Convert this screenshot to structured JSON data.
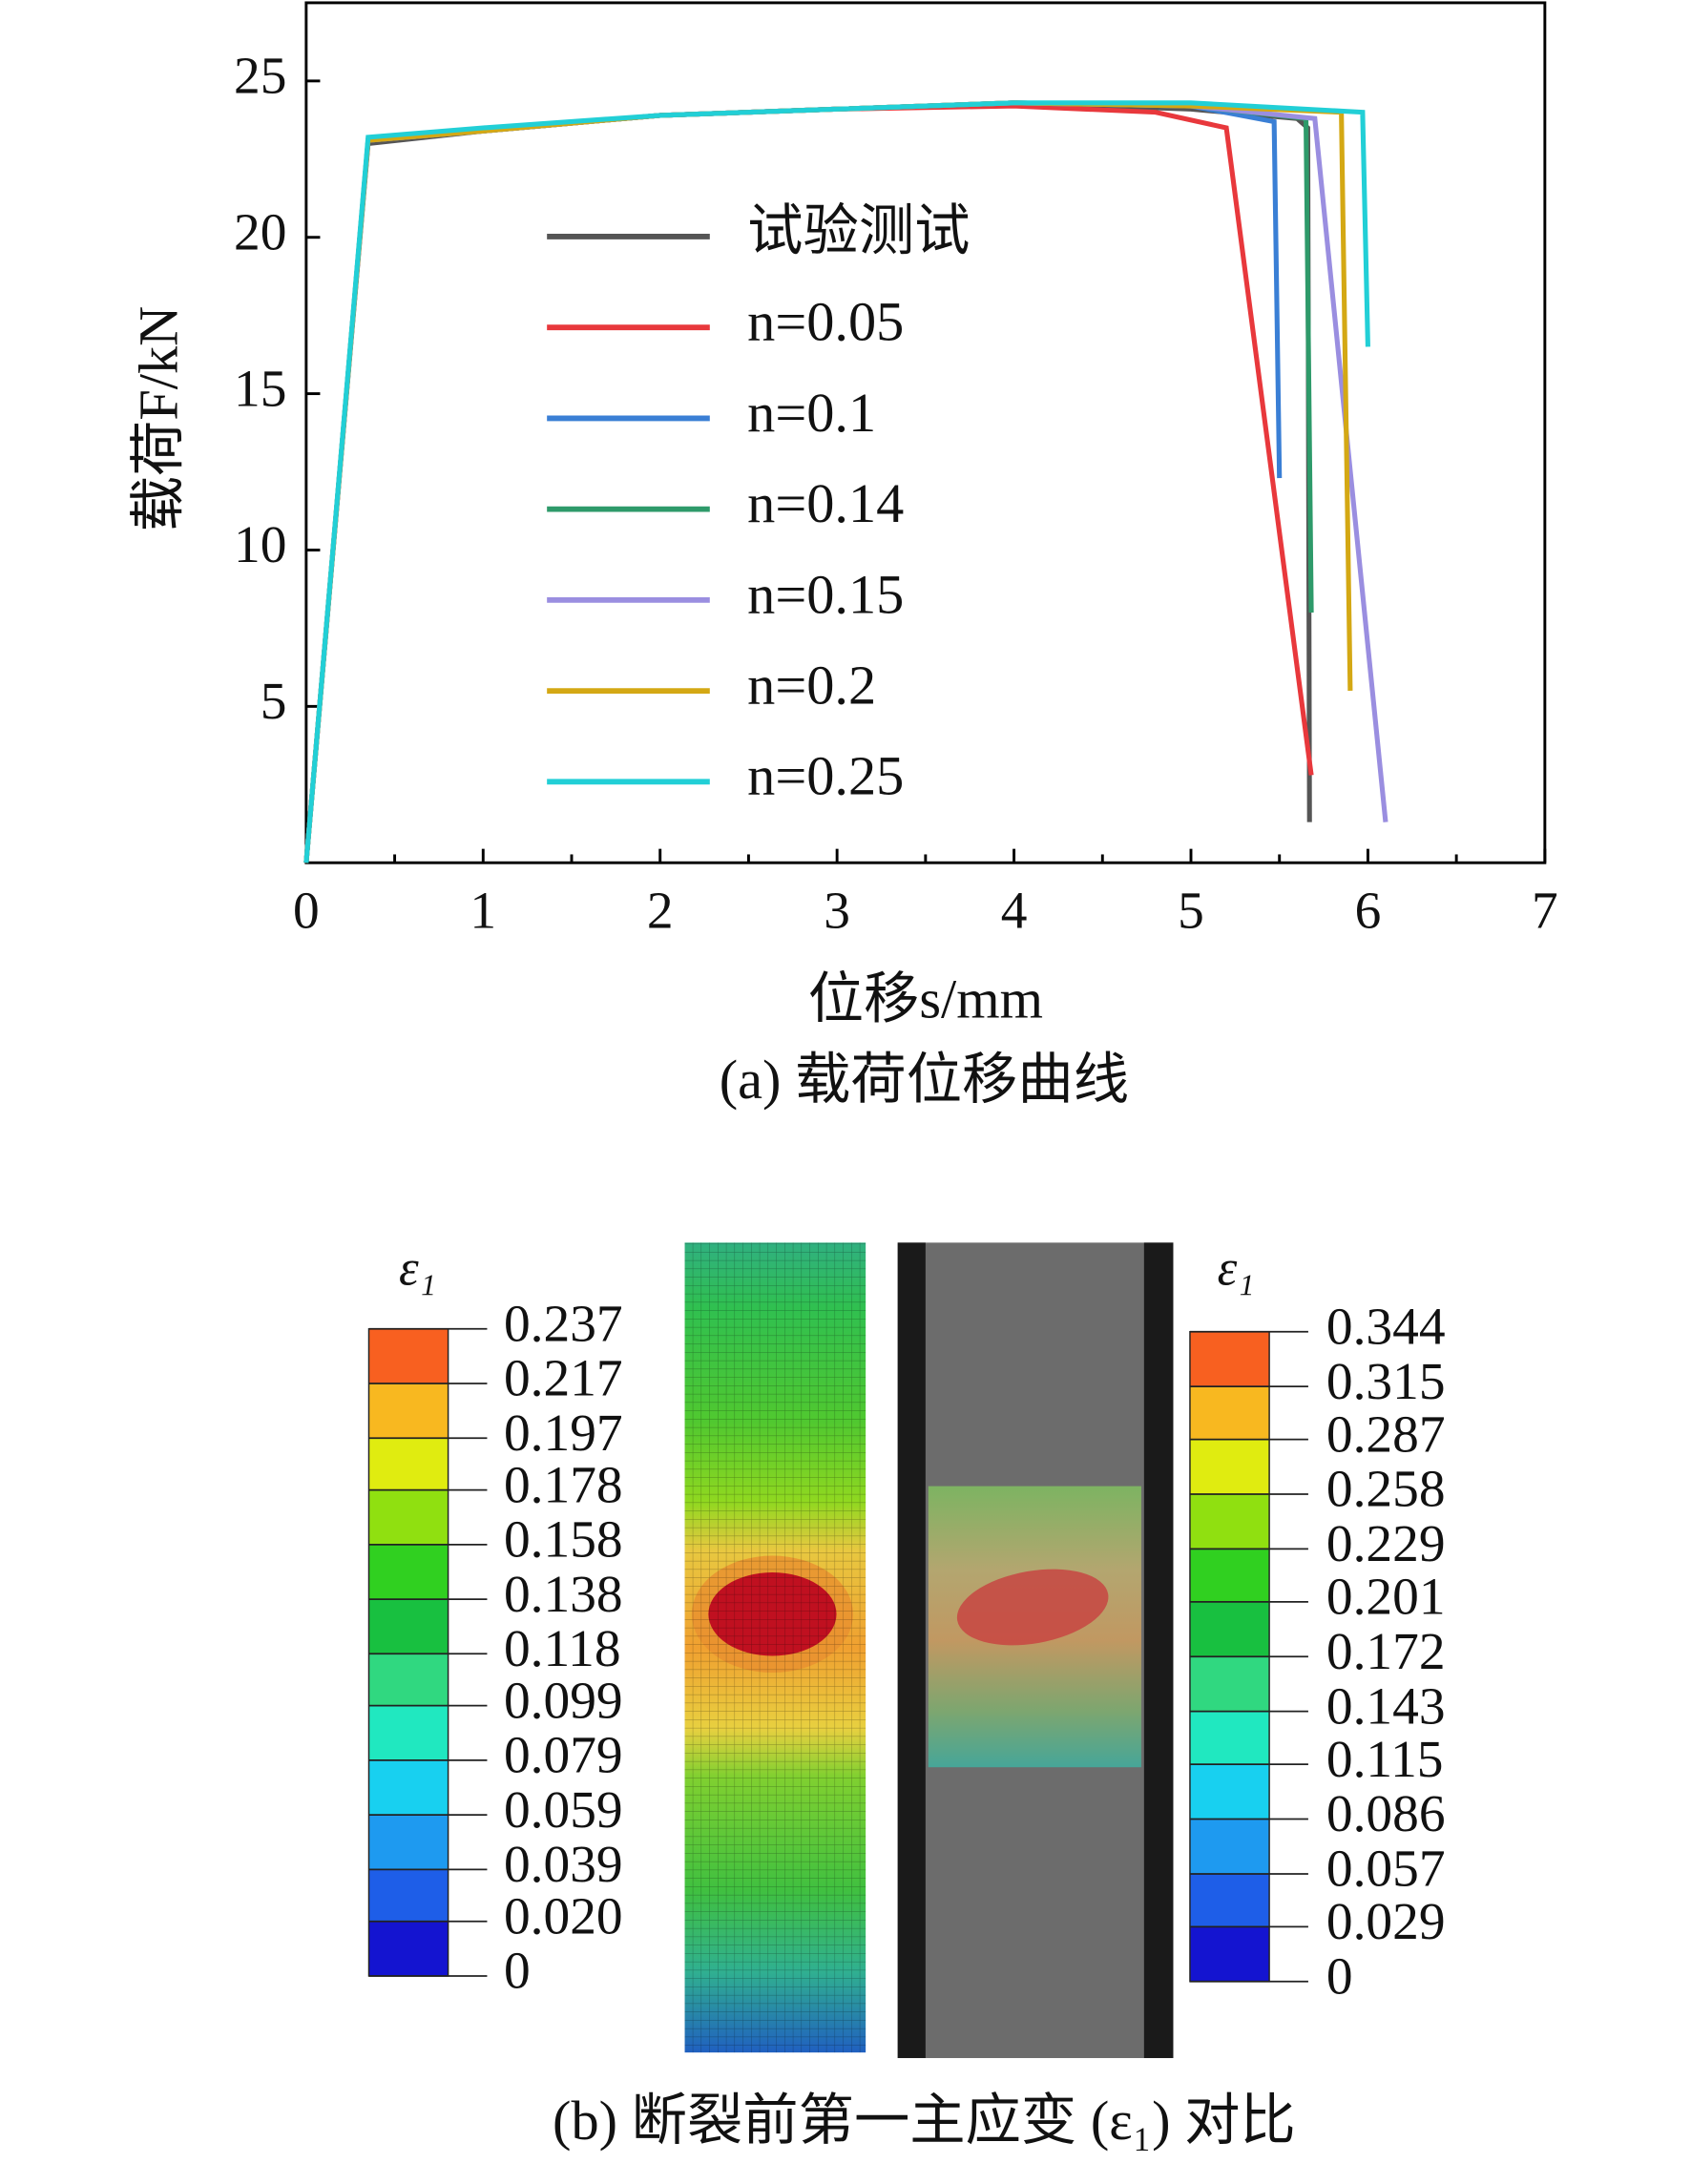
{
  "chart_data": {
    "type": "line",
    "x_label": "位移s/mm",
    "y_label": "载荷F/kN",
    "xlim": [
      0,
      7
    ],
    "xticks": [
      0,
      1,
      2,
      3,
      4,
      5,
      6,
      7
    ],
    "ylim": [
      0,
      27.5
    ],
    "yticks": [
      5,
      10,
      15,
      20,
      25
    ],
    "legend": "center-left",
    "series": [
      {
        "name": "试验测试",
        "color": "#555555",
        "x": [
          0,
          0.35,
          1,
          2,
          3,
          4,
          5,
          5.6,
          5.66,
          5.67
        ],
        "values": [
          0,
          23,
          23.4,
          23.9,
          24.1,
          24.3,
          24.1,
          23.8,
          23.5,
          1.3
        ]
      },
      {
        "name": "n=0.05",
        "color": "#e8383c",
        "x": [
          0,
          0.35,
          1,
          2,
          3,
          4,
          4.8,
          5.2,
          5.68
        ],
        "values": [
          0,
          23.1,
          23.4,
          23.9,
          24.1,
          24.2,
          24,
          23.5,
          2.8
        ]
      },
      {
        "name": "n=0.1",
        "color": "#3a7fd5",
        "x": [
          0,
          0.35,
          1,
          2,
          3,
          4,
          5,
          5.47,
          5.5
        ],
        "values": [
          0,
          23.1,
          23.4,
          23.9,
          24.1,
          24.3,
          24.2,
          23.7,
          12.3
        ]
      },
      {
        "name": "n=0.14",
        "color": "#2e9a6a",
        "x": [
          0,
          0.35,
          1,
          2,
          3,
          4,
          5,
          5.65,
          5.68
        ],
        "values": [
          0,
          23.1,
          23.4,
          23.9,
          24.1,
          24.3,
          24.2,
          23.8,
          8
        ]
      },
      {
        "name": "n=0.15",
        "color": "#9a8ee0",
        "x": [
          0,
          0.35,
          1,
          2,
          3,
          4,
          5,
          5.7,
          6.1
        ],
        "values": [
          0,
          23.1,
          23.4,
          23.9,
          24.1,
          24.3,
          24.2,
          23.8,
          1.3
        ]
      },
      {
        "name": "n=0.2",
        "color": "#d4a814",
        "x": [
          0,
          0.35,
          1,
          2,
          3,
          4,
          5,
          5.85,
          5.9
        ],
        "values": [
          0,
          23.1,
          23.4,
          23.9,
          24.1,
          24.3,
          24.2,
          24,
          5.5
        ]
      },
      {
        "name": "n=0.25",
        "color": "#22cfd6",
        "x": [
          0,
          0.35,
          1,
          2,
          3,
          4,
          5,
          5.97,
          6
        ],
        "values": [
          0,
          23.2,
          23.5,
          23.9,
          24.1,
          24.3,
          24.3,
          24,
          16.5
        ]
      }
    ]
  },
  "captions": [
    "(a) 载荷位移曲线",
    "(b) 断裂前第一主应变 (ε₁) 对比"
  ],
  "colorbars": [
    {
      "title": "ε₁",
      "ticks": [
        0.237,
        0.217,
        0.197,
        0.178,
        0.158,
        0.138,
        0.118,
        0.099,
        0.079,
        0.059,
        0.039,
        {
          "value": 0.02,
          "label": "0.020"
        },
        0
      ]
    },
    {
      "title": "ε₁",
      "ticks": [
        0.344,
        0.315,
        0.287,
        0.258,
        0.229,
        0.201,
        0.172,
        0.143,
        0.115,
        0.086,
        0.057,
        0.029,
        0
      ]
    }
  ],
  "colorbar_colors": [
    "#1414d0",
    "#1e5ee8",
    "#1e9af0",
    "#18d0f0",
    "#20e8c0",
    "#30d880",
    "#18c040",
    "#30d020",
    "#90e010",
    "#e0ec10",
    "#f8b820",
    "#f86020",
    "#e01010"
  ]
}
